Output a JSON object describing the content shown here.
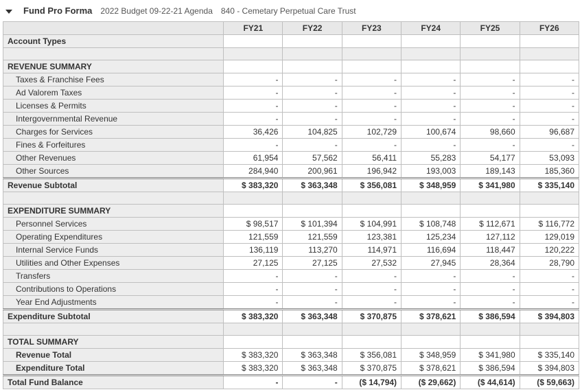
{
  "header": {
    "title": "Fund Pro Forma",
    "budget": "2022 Budget 09-22-21 Agenda",
    "fund": "840 - Cemetary Perpetual Care Trust"
  },
  "columns": [
    "FY21",
    "FY22",
    "FY23",
    "FY24",
    "FY25",
    "FY26"
  ],
  "account_types_label": "Account Types",
  "revenue": {
    "heading": "REVENUE SUMMARY",
    "rows": [
      {
        "label": "Taxes & Franchise Fees",
        "vals": [
          "-",
          "-",
          "-",
          "-",
          "-",
          "-"
        ]
      },
      {
        "label": "Ad Valorem Taxes",
        "vals": [
          "-",
          "-",
          "-",
          "-",
          "-",
          "-"
        ]
      },
      {
        "label": "Licenses & Permits",
        "vals": [
          "-",
          "-",
          "-",
          "-",
          "-",
          "-"
        ]
      },
      {
        "label": "Intergovernmental Revenue",
        "vals": [
          "-",
          "-",
          "-",
          "-",
          "-",
          "-"
        ]
      },
      {
        "label": "Charges for Services",
        "vals": [
          "36,426",
          "104,825",
          "102,729",
          "100,674",
          "98,660",
          "96,687"
        ]
      },
      {
        "label": "Fines & Forfeitures",
        "vals": [
          "-",
          "-",
          "-",
          "-",
          "-",
          "-"
        ]
      },
      {
        "label": "Other Revenues",
        "vals": [
          "61,954",
          "57,562",
          "56,411",
          "55,283",
          "54,177",
          "53,093"
        ]
      },
      {
        "label": "Other Sources",
        "vals": [
          "284,940",
          "200,961",
          "196,942",
          "193,003",
          "189,143",
          "185,360"
        ]
      }
    ],
    "subtotal": {
      "label": "Revenue Subtotal",
      "vals": [
        "$ 383,320",
        "$ 363,348",
        "$ 356,081",
        "$ 348,959",
        "$ 341,980",
        "$ 335,140"
      ]
    }
  },
  "expenditure": {
    "heading": "EXPENDITURE SUMMARY",
    "rows": [
      {
        "label": "Personnel Services",
        "vals": [
          "$ 98,517",
          "$ 101,394",
          "$ 104,991",
          "$ 108,748",
          "$ 112,671",
          "$ 116,772"
        ]
      },
      {
        "label": "Operating Expenditures",
        "vals": [
          "121,559",
          "121,559",
          "123,381",
          "125,234",
          "127,112",
          "129,019"
        ]
      },
      {
        "label": "Internal Service Funds",
        "vals": [
          "136,119",
          "113,270",
          "114,971",
          "116,694",
          "118,447",
          "120,222"
        ]
      },
      {
        "label": "Utilities and Other Expenses",
        "vals": [
          "27,125",
          "27,125",
          "27,532",
          "27,945",
          "28,364",
          "28,790"
        ]
      },
      {
        "label": "Transfers",
        "vals": [
          "-",
          "-",
          "-",
          "-",
          "-",
          "-"
        ]
      },
      {
        "label": "Contributions to Operations",
        "vals": [
          "-",
          "-",
          "-",
          "-",
          "-",
          "-"
        ]
      },
      {
        "label": "Year End Adjustments",
        "vals": [
          "-",
          "-",
          "-",
          "-",
          "-",
          "-"
        ]
      }
    ],
    "subtotal": {
      "label": "Expenditure Subtotal",
      "vals": [
        "$ 383,320",
        "$ 363,348",
        "$ 370,875",
        "$ 378,621",
        "$ 386,594",
        "$ 394,803"
      ]
    }
  },
  "total": {
    "heading": "TOTAL SUMMARY",
    "rows": [
      {
        "label": "Revenue Total",
        "vals": [
          "$ 383,320",
          "$ 363,348",
          "$ 356,081",
          "$ 348,959",
          "$ 341,980",
          "$ 335,140"
        ]
      },
      {
        "label": "Expenditure Total",
        "vals": [
          "$ 383,320",
          "$ 363,348",
          "$ 370,875",
          "$ 378,621",
          "$ 386,594",
          "$ 394,803"
        ]
      }
    ],
    "balance": {
      "label": "Total Fund Balance",
      "vals": [
        "-",
        "-",
        "($ 14,794)",
        "($ 29,662)",
        "($ 44,614)",
        "($ 59,663)"
      ]
    }
  }
}
